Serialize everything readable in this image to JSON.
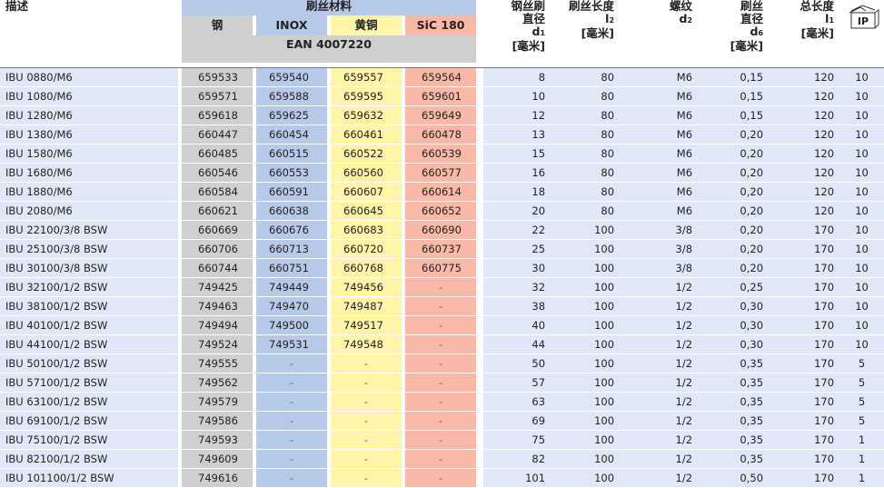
{
  "header": {
    "description": "描述",
    "materials_title": "刷丝材料",
    "steel": "钢",
    "inox": "INOX",
    "brass": "黄铜",
    "sic": "SiC 180",
    "ean": "EAN 4007220",
    "d1_line1": "钢丝刷",
    "d1_line2": "直径",
    "d1_sym": "d",
    "d1_sub": "1",
    "d1_unit": "[毫米]",
    "l2_line1": "刷丝长度",
    "l2_sym": "l",
    "l2_sub": "2",
    "l2_unit": "[毫米]",
    "d2_line1": "螺纹",
    "d2_sym": "d",
    "d2_sub": "2",
    "d6_line1": "刷丝",
    "d6_line2": "直径",
    "d6_sym": "d",
    "d6_sub": "6",
    "d6_unit": "[毫米]",
    "l1_line1": "总长度",
    "l1_sym": "l",
    "l1_sub": "1",
    "l1_unit": "[毫米]",
    "ip": "IP"
  },
  "rows": [
    [
      "IBU 0880/M6",
      "659533",
      "659540",
      "659557",
      "659564",
      "8",
      "80",
      "M6",
      "0,15",
      "120",
      "10"
    ],
    [
      "IBU 1080/M6",
      "659571",
      "659588",
      "659595",
      "659601",
      "10",
      "80",
      "M6",
      "0,15",
      "120",
      "10"
    ],
    [
      "IBU 1280/M6",
      "659618",
      "659625",
      "659632",
      "659649",
      "12",
      "80",
      "M6",
      "0,15",
      "120",
      "10"
    ],
    [
      "IBU 1380/M6",
      "660447",
      "660454",
      "660461",
      "660478",
      "13",
      "80",
      "M6",
      "0,20",
      "120",
      "10"
    ],
    [
      "IBU 1580/M6",
      "660485",
      "660515",
      "660522",
      "660539",
      "15",
      "80",
      "M6",
      "0,20",
      "120",
      "10"
    ],
    [
      "IBU 1680/M6",
      "660546",
      "660553",
      "660560",
      "660577",
      "16",
      "80",
      "M6",
      "0,20",
      "120",
      "10"
    ],
    [
      "IBU 1880/M6",
      "660584",
      "660591",
      "660607",
      "660614",
      "18",
      "80",
      "M6",
      "0,20",
      "120",
      "10"
    ],
    [
      "IBU 2080/M6",
      "660621",
      "660638",
      "660645",
      "660652",
      "20",
      "80",
      "M6",
      "0,20",
      "120",
      "10"
    ],
    [
      "IBU 22100/3/8 BSW",
      "660669",
      "660676",
      "660683",
      "660690",
      "22",
      "100",
      "3/8",
      "0,20",
      "170",
      "10"
    ],
    [
      "IBU 25100/3/8 BSW",
      "660706",
      "660713",
      "660720",
      "660737",
      "25",
      "100",
      "3/8",
      "0,20",
      "170",
      "10"
    ],
    [
      "IBU 30100/3/8 BSW",
      "660744",
      "660751",
      "660768",
      "660775",
      "30",
      "100",
      "3/8",
      "0,20",
      "170",
      "10"
    ],
    [
      "IBU 32100/1/2 BSW",
      "749425",
      "749449",
      "749456",
      "-",
      "32",
      "100",
      "1/2",
      "0,25",
      "170",
      "10"
    ],
    [
      "IBU 38100/1/2 BSW",
      "749463",
      "749470",
      "749487",
      "-",
      "38",
      "100",
      "1/2",
      "0,30",
      "170",
      "10"
    ],
    [
      "IBU 40100/1/2 BSW",
      "749494",
      "749500",
      "749517",
      "-",
      "40",
      "100",
      "1/2",
      "0,30",
      "170",
      "10"
    ],
    [
      "IBU 44100/1/2 BSW",
      "749524",
      "749531",
      "749548",
      "-",
      "44",
      "100",
      "1/2",
      "0,30",
      "170",
      "10"
    ],
    [
      "IBU 50100/1/2 BSW",
      "749555",
      "-",
      "-",
      "-",
      "50",
      "100",
      "1/2",
      "0,35",
      "170",
      "5"
    ],
    [
      "IBU 57100/1/2 BSW",
      "749562",
      "-",
      "-",
      "-",
      "57",
      "100",
      "1/2",
      "0,35",
      "170",
      "5"
    ],
    [
      "IBU 63100/1/2 BSW",
      "749579",
      "-",
      "-",
      "-",
      "63",
      "100",
      "1/2",
      "0,35",
      "170",
      "5"
    ],
    [
      "IBU 69100/1/2 BSW",
      "749586",
      "-",
      "-",
      "-",
      "69",
      "100",
      "1/2",
      "0,35",
      "170",
      "5"
    ],
    [
      "IBU 75100/1/2 BSW",
      "749593",
      "-",
      "-",
      "-",
      "75",
      "100",
      "1/2",
      "0,35",
      "170",
      "1"
    ],
    [
      "IBU 82100/1/2 BSW",
      "749609",
      "-",
      "-",
      "-",
      "82",
      "100",
      "1/2",
      "0,35",
      "170",
      "1"
    ],
    [
      "IBU 101100/1/2 BSW",
      "749616",
      "-",
      "-",
      "-",
      "101",
      "100",
      "1/2",
      "0,50",
      "170",
      "1"
    ]
  ]
}
